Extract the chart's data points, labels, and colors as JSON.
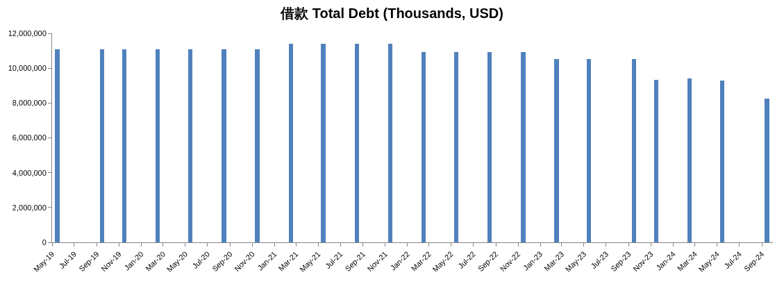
{
  "chart_data": {
    "type": "bar",
    "title": "借款 Total Debt (Thousands, USD)",
    "x": [
      "2019-05-15",
      "2019-09-15",
      "2019-11-15",
      "2020-02-15",
      "2020-05-15",
      "2020-08-15",
      "2020-11-15",
      "2021-02-15",
      "2021-05-15",
      "2021-08-15",
      "2021-11-15",
      "2022-02-15",
      "2022-05-15",
      "2022-08-15",
      "2022-11-15",
      "2023-02-15",
      "2023-05-15",
      "2023-09-15",
      "2023-11-15",
      "2024-02-15",
      "2024-05-15",
      "2024-09-15"
    ],
    "values": [
      11080000,
      11080000,
      11080000,
      11080000,
      11080000,
      11080000,
      11080000,
      11390000,
      11390000,
      11390000,
      11390000,
      10920000,
      10920000,
      10920000,
      10920000,
      10540000,
      10540000,
      10540000,
      9330000,
      9420000,
      9290000,
      8250000
    ],
    "color": "#4f81bd",
    "ylim": [
      0,
      12000000
    ],
    "yticks": [
      {
        "value": 0,
        "label": "0"
      },
      {
        "value": 2000000,
        "label": "2,000,000"
      },
      {
        "value": 4000000,
        "label": "4,000,000"
      },
      {
        "value": 6000000,
        "label": "6,000,000"
      },
      {
        "value": 8000000,
        "label": "8,000,000"
      },
      {
        "value": 10000000,
        "label": "10,000,000"
      },
      {
        "value": 12000000,
        "label": "12,000,000"
      }
    ],
    "xlim": [
      "2019-05",
      "2024-10"
    ],
    "xticks": [
      {
        "value": "2019-05",
        "label": "May-19"
      },
      {
        "value": "2019-07",
        "label": "Jul-19"
      },
      {
        "value": "2019-09",
        "label": "Sep-19"
      },
      {
        "value": "2019-11",
        "label": "Nov-19"
      },
      {
        "value": "2020-01",
        "label": "Jan-20"
      },
      {
        "value": "2020-03",
        "label": "Mar-20"
      },
      {
        "value": "2020-05",
        "label": "May-20"
      },
      {
        "value": "2020-07",
        "label": "Jul-20"
      },
      {
        "value": "2020-09",
        "label": "Sep-20"
      },
      {
        "value": "2020-11",
        "label": "Nov-20"
      },
      {
        "value": "2021-01",
        "label": "Jan-21"
      },
      {
        "value": "2021-03",
        "label": "Mar-21"
      },
      {
        "value": "2021-05",
        "label": "May-21"
      },
      {
        "value": "2021-07",
        "label": "Jul-21"
      },
      {
        "value": "2021-09",
        "label": "Sep-21"
      },
      {
        "value": "2021-11",
        "label": "Nov-21"
      },
      {
        "value": "2022-01",
        "label": "Jan-22"
      },
      {
        "value": "2022-03",
        "label": "Mar-22"
      },
      {
        "value": "2022-05",
        "label": "May-22"
      },
      {
        "value": "2022-07",
        "label": "Jul-22"
      },
      {
        "value": "2022-09",
        "label": "Sep-22"
      },
      {
        "value": "2022-11",
        "label": "Nov-22"
      },
      {
        "value": "2023-01",
        "label": "Jan-23"
      },
      {
        "value": "2023-03",
        "label": "Mar-23"
      },
      {
        "value": "2023-05",
        "label": "May-23"
      },
      {
        "value": "2023-07",
        "label": "Jul-23"
      },
      {
        "value": "2023-09",
        "label": "Sep-23"
      },
      {
        "value": "2023-11",
        "label": "Nov-23"
      },
      {
        "value": "2024-01",
        "label": "Jan-24"
      },
      {
        "value": "2024-03",
        "label": "Mar-24"
      },
      {
        "value": "2024-05",
        "label": "May-24"
      },
      {
        "value": "2024-07",
        "label": "Jul-24"
      },
      {
        "value": "2024-09",
        "label": "Sep-24"
      }
    ],
    "grid": false
  }
}
